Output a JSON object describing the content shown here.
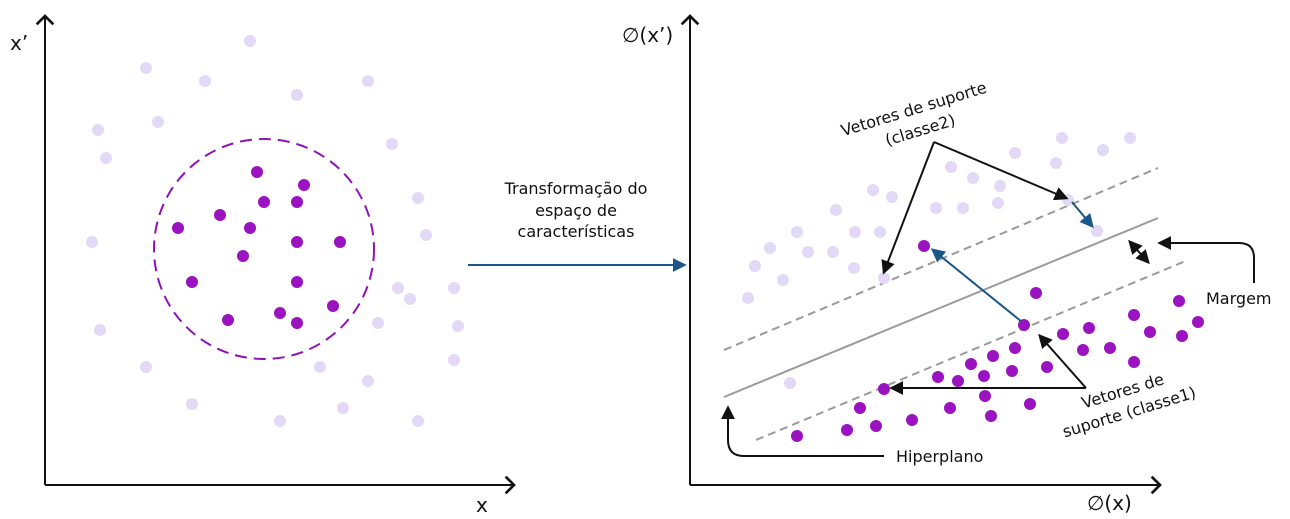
{
  "colors": {
    "inner_class": "#9b13c0",
    "outer_class": "#e3d8f5",
    "boundary": "#8e12b8",
    "axis": "#111111",
    "hyperplane": "#9a9a9a",
    "margin_lines": "#9a9a9a",
    "blue_arrow": "#1a5688",
    "black_arrow": "#111111"
  },
  "left_panel": {
    "x_axis_label": "x",
    "y_axis_label": "x’"
  },
  "transform": {
    "line1": "Transformação do",
    "line2": "espaço de",
    "line3": "características"
  },
  "right_panel": {
    "x_axis_label": "∅(x)",
    "y_axis_label": "∅(x’)",
    "support_class2": {
      "line1": "Vetores de suporte",
      "line2": "(classe2)"
    },
    "support_class1": {
      "line1": "Vetores de",
      "line2": "suporte (classe1)"
    },
    "margin_label": "Margem",
    "hyperplane_label": "Hiperplano"
  }
}
